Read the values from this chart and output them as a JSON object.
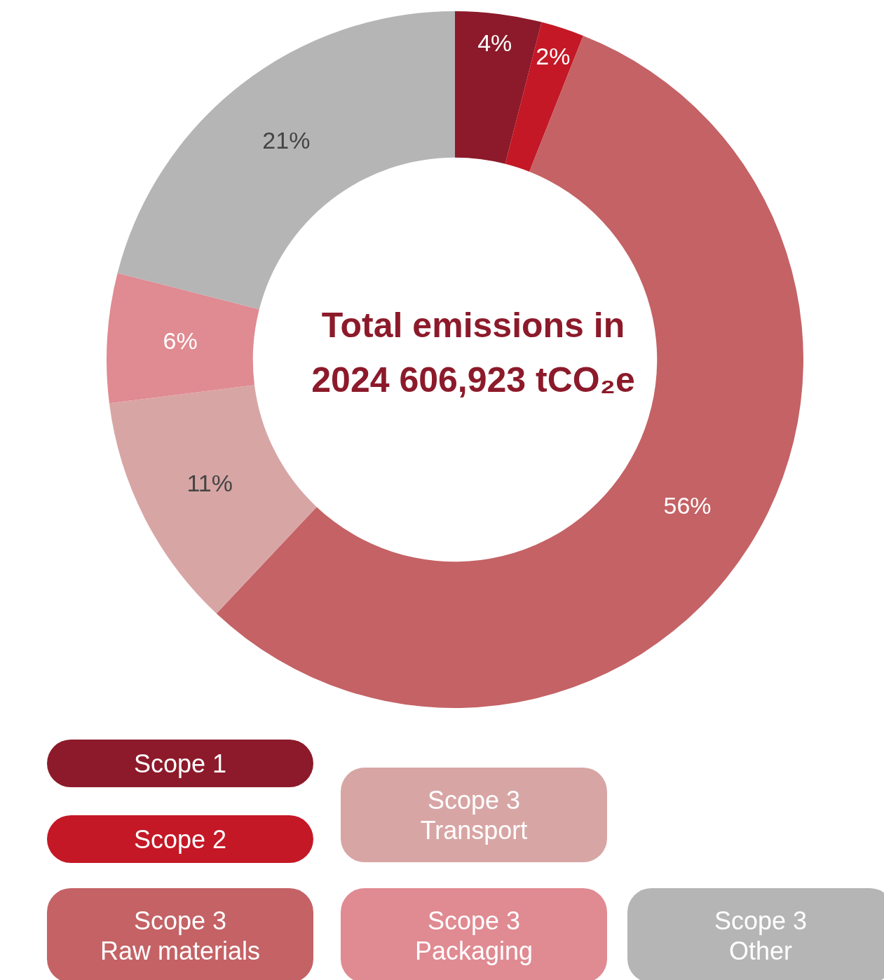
{
  "chart_data": {
    "type": "donut",
    "title": "Total emissions in 2024 606,923 tCO₂e",
    "categories": [
      "Scope 1",
      "Scope 2",
      "Scope 3 Raw materials",
      "Scope 3 Transport",
      "Scope 3 Packaging",
      "Scope 3 Other"
    ],
    "values": [
      4,
      2,
      56,
      11,
      6,
      21
    ],
    "value_labels": [
      "4%",
      "2%",
      "56%",
      "11%",
      "6%",
      "21%"
    ],
    "colors": [
      "#8c1a2a",
      "#c41826",
      "#c46265",
      "#d8a5a5",
      "#e08a92",
      "#b5b5b5"
    ],
    "legend": "bottom"
  }
}
